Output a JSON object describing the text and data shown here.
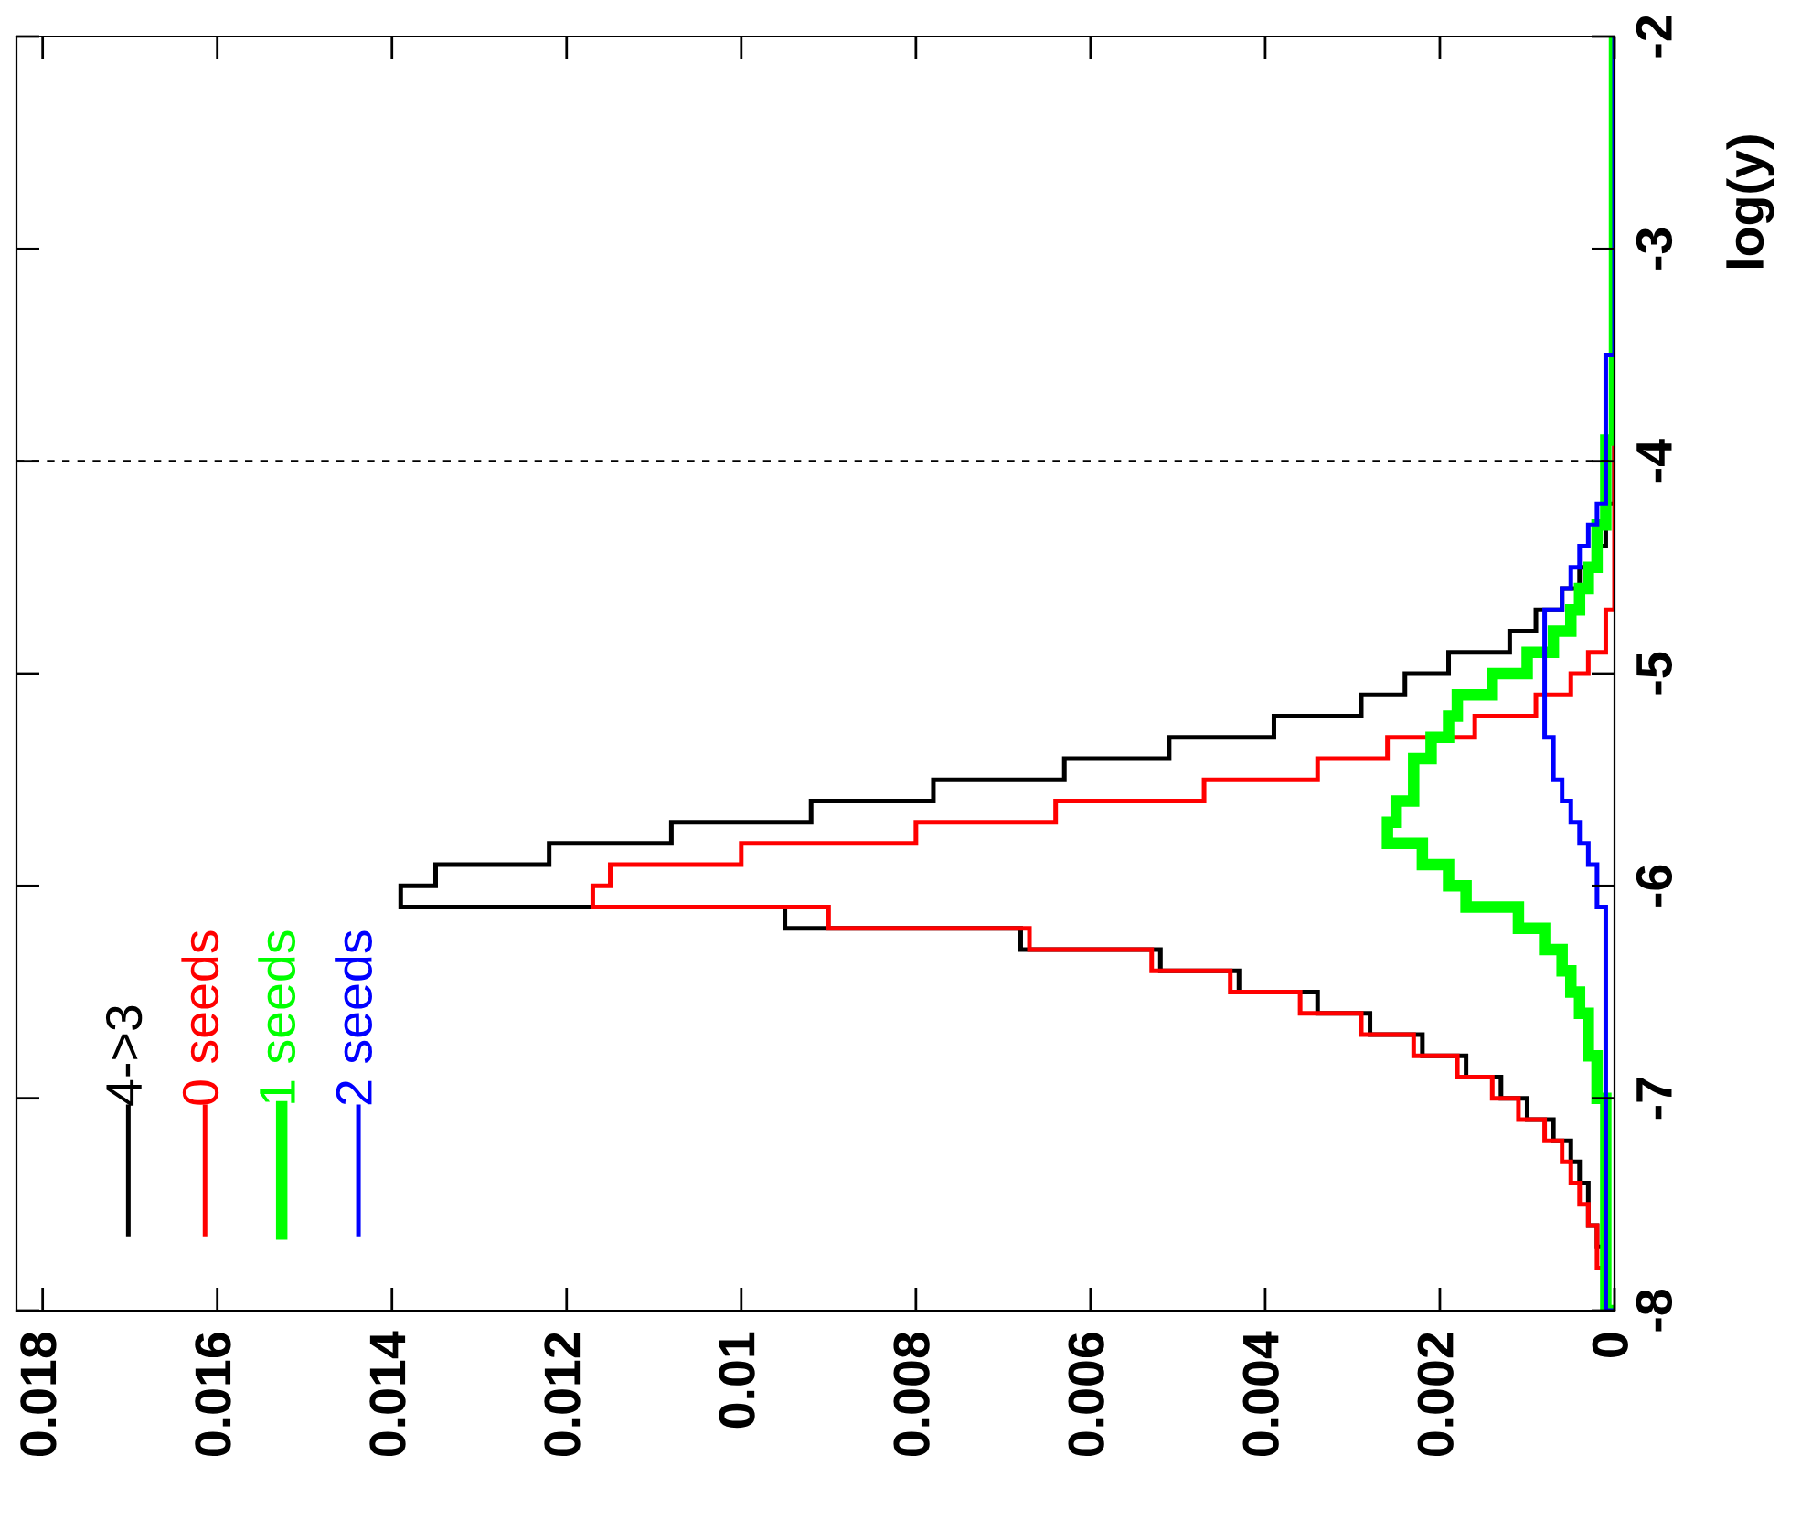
{
  "chart_data": {
    "type": "histogram",
    "orientation": "horizontal",
    "ylabel": "log(y)",
    "bins": [
      -8,
      -7.9,
      -7.8,
      -7.7,
      -7.6,
      -7.5,
      -7.4,
      -7.3,
      -7.2,
      -7.1,
      -7,
      -6.9,
      -6.8,
      -6.7,
      -6.6,
      -6.5,
      -6.4,
      -6.3,
      -6.2,
      -6.1,
      -6,
      -5.9,
      -5.8,
      -5.7,
      -5.6,
      -5.5,
      -5.4,
      -5.3,
      -5.2,
      -5.1,
      -5,
      -4.9,
      -4.8,
      -4.7,
      -4.6,
      -4.5,
      -4.4,
      -4.3,
      -4.2,
      -4.1,
      -4,
      -3.9,
      -3.8,
      -3.7,
      -3.6,
      -3.5,
      -3.4,
      -3.3,
      -3.2,
      -3.1,
      -3,
      -2.9,
      -2.8,
      -2.7,
      -2.6,
      -2.5,
      -2.4,
      -2.3,
      -2.2,
      -2.1,
      -2
    ],
    "series": [
      {
        "name": "4->3",
        "color": "#000000",
        "values": [
          0.0001,
          0.0001,
          0.0001,
          0.0002,
          0.0003,
          0.0003,
          0.0004,
          0.0005,
          0.0007,
          0.001,
          0.0013,
          0.0017,
          0.0022,
          0.0028,
          0.0034,
          0.0043,
          0.0052,
          0.0068,
          0.0095,
          0.0139,
          0.0135,
          0.0122,
          0.0108,
          0.0092,
          0.0078,
          0.0063,
          0.0051,
          0.0039,
          0.0029,
          0.0024,
          0.0019,
          0.0012,
          0.0009,
          0.0006,
          0.0004,
          0.0002,
          0.0001,
          0.0001,
          0,
          0,
          0,
          0,
          0,
          0,
          0,
          0,
          0,
          0,
          0,
          0,
          0,
          0,
          0,
          0,
          0,
          0,
          0,
          0,
          0,
          0
        ]
      },
      {
        "name": "0 seeds",
        "color": "#ff0000",
        "values": [
          0.0001,
          0.0001,
          0.0002,
          0.0002,
          0.0003,
          0.0004,
          0.0005,
          0.0006,
          0.0008,
          0.0011,
          0.0014,
          0.0018,
          0.0023,
          0.0029,
          0.0036,
          0.0044,
          0.0053,
          0.0067,
          0.009,
          0.0117,
          0.0115,
          0.01,
          0.008,
          0.0064,
          0.0047,
          0.0034,
          0.0026,
          0.0016,
          0.0009,
          0.0005,
          0.0003,
          0.0001,
          0.0001,
          0,
          0,
          0,
          0,
          0,
          0,
          0,
          0,
          0,
          0,
          0,
          0,
          0,
          0,
          0,
          0,
          0,
          0,
          0,
          0,
          0,
          0,
          0,
          0,
          0,
          0,
          0
        ]
      },
      {
        "name": "1 seeds",
        "color": "#00ff00",
        "values": [
          0.0001,
          0.0001,
          0.0001,
          0.0001,
          0.0001,
          0.0001,
          0.0001,
          0.0001,
          0.0001,
          0.0001,
          0.0002,
          0.0002,
          0.0003,
          0.0003,
          0.0004,
          0.0005,
          0.0006,
          0.0008,
          0.0011,
          0.0017,
          0.0019,
          0.0022,
          0.0026,
          0.0025,
          0.0023,
          0.0023,
          0.0021,
          0.0019,
          0.0018,
          0.0014,
          0.001,
          0.0007,
          0.0005,
          0.0004,
          0.0003,
          0.0002,
          0.0002,
          0.0001,
          0.0001,
          0.0001,
          0.0001,
          0,
          0,
          0,
          0,
          0,
          0,
          0,
          0,
          0,
          0,
          0,
          0,
          0,
          0,
          0,
          0,
          0,
          0,
          0
        ]
      },
      {
        "name": "2 seeds",
        "color": "#0000ff",
        "values": [
          0.0001,
          0.0001,
          0.0001,
          0.0001,
          0.0001,
          0.0001,
          0.0001,
          0.0001,
          0.0001,
          0.0001,
          0.0001,
          0.0001,
          0.0001,
          0.0001,
          0.0001,
          0.0001,
          0.0001,
          0.0001,
          0.0001,
          0.0002,
          0.0002,
          0.0003,
          0.0004,
          0.0005,
          0.0006,
          0.0007,
          0.0007,
          0.0008,
          0.0008,
          0.0008,
          0.0008,
          0.0008,
          0.0008,
          0.0006,
          0.0005,
          0.0004,
          0.0003,
          0.0002,
          0.0001,
          0.0001,
          0.0001,
          0.0001,
          0.0001,
          0.0001,
          0.0001,
          0,
          0,
          0,
          0,
          0,
          0,
          0,
          0,
          0,
          0,
          0,
          0,
          0,
          0,
          0
        ]
      }
    ],
    "xlim": [
      0.0183,
      0
    ],
    "xticks": [
      0,
      0.002,
      0.004,
      0.006,
      0.008,
      0.01,
      0.012,
      0.014,
      0.016,
      0.018
    ],
    "ylim": [
      -8,
      -2
    ],
    "yticks": [
      -8,
      -7,
      -6,
      -5,
      -4,
      -3,
      -2
    ],
    "ref_lines": [
      {
        "axis": "y",
        "value": -4,
        "color": "#000000",
        "line_style": "dashed"
      }
    ],
    "legend": "bottom left",
    "grid": false
  }
}
